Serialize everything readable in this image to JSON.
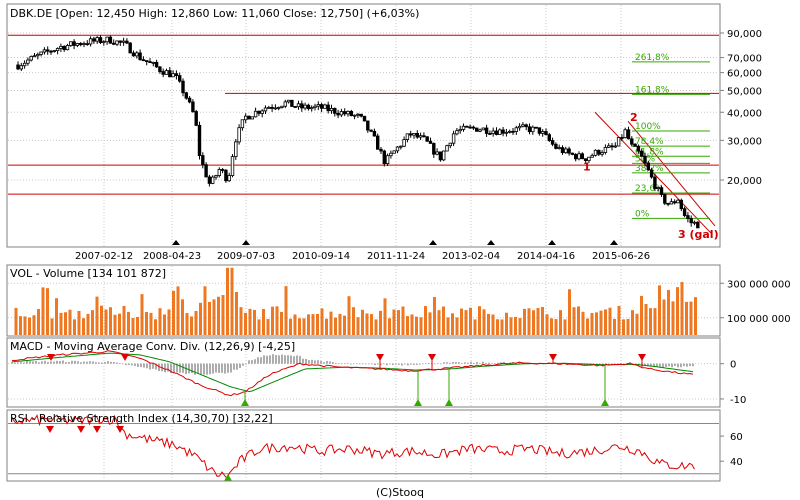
{
  "colors": {
    "frame": "#808080",
    "grid": "#c8c8c8",
    "red_line": "#cc0000",
    "fib_green": "#33aa00",
    "volume_bar": "#ee7722",
    "macd_line": "#dd0000",
    "signal_line": "#008800",
    "hist_bar": "#999999",
    "rsi_line": "#dd0000",
    "arrow_up": "#33aa00",
    "arrow_down": "#dd0000",
    "wave_label": "#cc0000",
    "candle": "#000000"
  },
  "footer": "(C)Stooq",
  "chart_data": [
    {
      "type": "candlestick",
      "title": "DBK.DE [Open: 12,450  High: 12,860  Low: 11,060  Close: 12,750]  (+6,03%)",
      "y_scale": "log",
      "ylim": [
        11,
        100000
      ],
      "y_ticks": [
        {
          "value": 90000,
          "label": "90,000"
        },
        {
          "value": 70000,
          "label": "70,000"
        },
        {
          "value": 60000,
          "label": "60,000"
        },
        {
          "value": 50000,
          "label": "50,000"
        },
        {
          "value": 40000,
          "label": "40,000"
        },
        {
          "value": 30000,
          "label": "30,000"
        },
        {
          "value": 20000,
          "label": "20,000"
        }
      ],
      "x_ticks": [
        "2007-02-12",
        "2008-04-23",
        "2009-07-03",
        "2010-09-14",
        "2011-11-24",
        "2013-02-04",
        "2014-04-16",
        "2015-06-26"
      ],
      "horizontal_lines": [
        88000,
        48500,
        23300,
        17300
      ],
      "fibonacci_levels": [
        {
          "label": "261,8%",
          "value": 67000
        },
        {
          "label": "161,8%",
          "value": 48000
        },
        {
          "label": "100%",
          "value": 33000
        },
        {
          "label": "78,4%",
          "value": 28300
        },
        {
          "label": "61,8%",
          "value": 25500
        },
        {
          "label": "50%",
          "value": 23700
        },
        {
          "label": "38,2%",
          "value": 21500
        },
        {
          "label": "23,6%",
          "value": 17500
        },
        {
          "label": "0%",
          "value": 13500
        }
      ],
      "wave_labels": [
        {
          "label": "1",
          "value": 22000
        },
        {
          "label": "2",
          "value": 36500
        },
        {
          "label": "3 (gal)",
          "value": 12000
        }
      ],
      "grid": true
    },
    {
      "type": "bar",
      "title": "VOL - Volume [134 101 872]",
      "ylim": [
        0,
        400000000
      ],
      "y_ticks": [
        {
          "value": 300000000,
          "label": "300 000 000"
        },
        {
          "value": 100000000,
          "label": "100 000 000"
        }
      ],
      "grid": true
    },
    {
      "type": "line",
      "title": "MACD - Moving Average Conv. Div. (12,26,9) [-4,25]",
      "ylim": [
        -12,
        7
      ],
      "y_ticks": [
        {
          "value": 0,
          "label": "0"
        },
        {
          "value": -10,
          "label": "-10"
        }
      ],
      "grid": true
    },
    {
      "type": "line",
      "title": "RSI - Relative Strength Index (14,30,70) [32,22]",
      "ylim": [
        25,
        80
      ],
      "y_ticks": [
        {
          "value": 60,
          "label": "60"
        },
        {
          "value": 40,
          "label": "40"
        }
      ],
      "reference_lines": [
        70,
        30
      ],
      "grid": true
    }
  ]
}
